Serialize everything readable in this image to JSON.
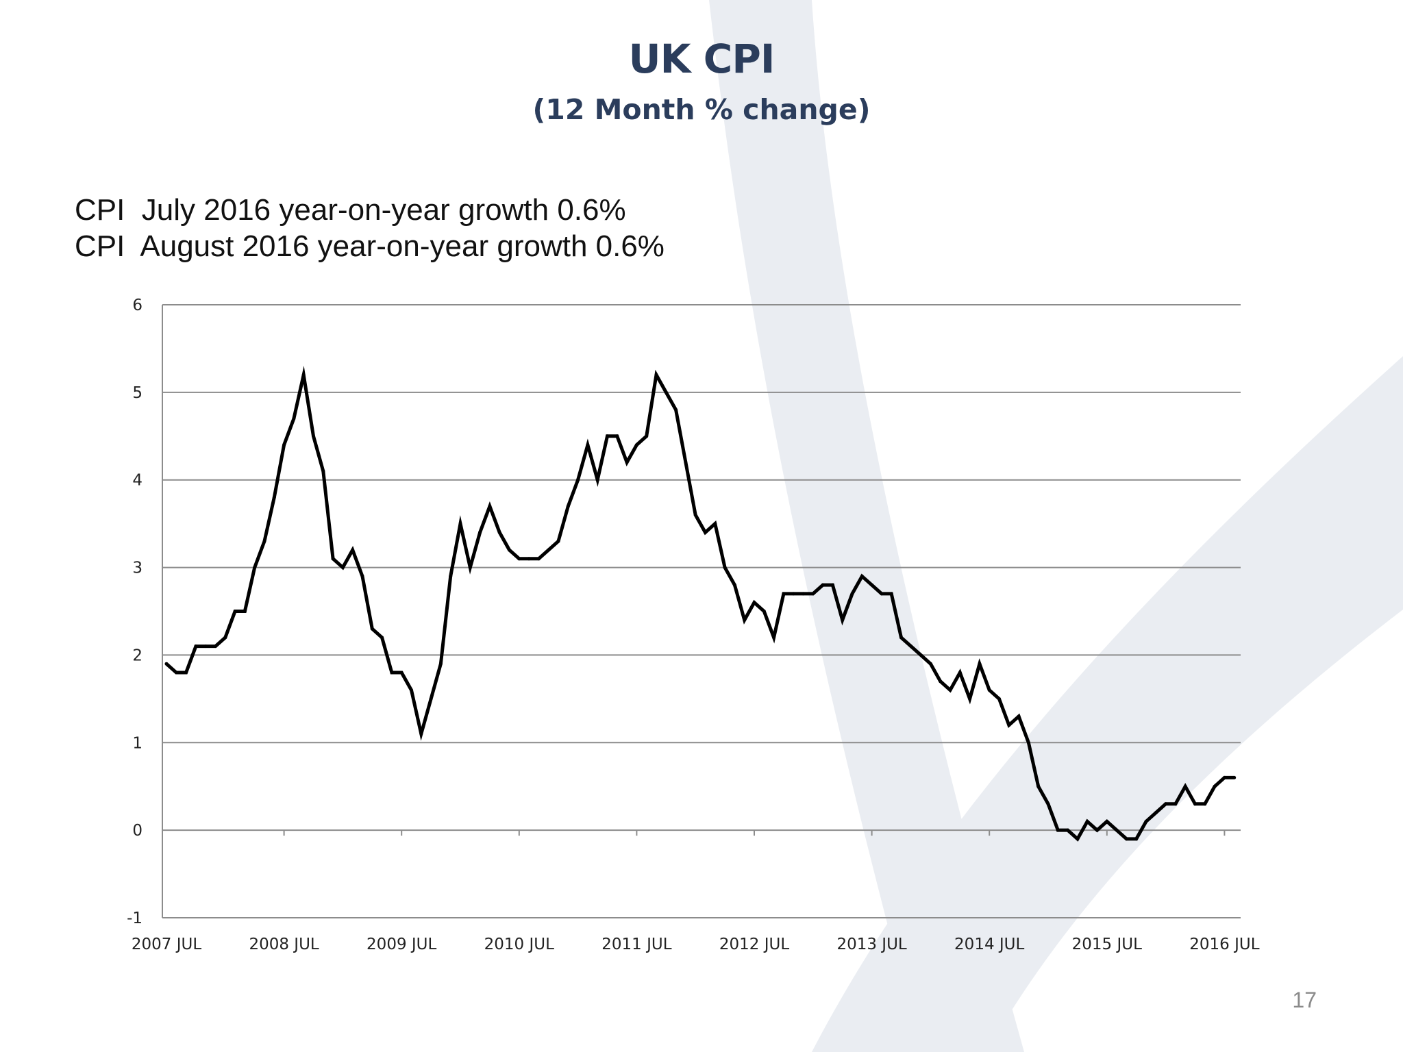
{
  "slide": {
    "title": "UK CPI",
    "subtitle": "(12 Month % change)",
    "notes": [
      "CPI  July 2016 year-on-year growth 0.6%",
      "CPI  August 2016 year-on-year growth 0.6%"
    ],
    "page_number": "17"
  },
  "colors": {
    "title": "#2b3d5c",
    "line": "#000000",
    "gridline": "#8c8c8c",
    "watermark": "#eaedf2"
  },
  "chart_data": {
    "type": "line",
    "title": "",
    "xlabel": "",
    "ylabel": "",
    "ylim": [
      -1,
      6
    ],
    "yticks": [
      -1,
      0,
      1,
      2,
      3,
      4,
      5,
      6
    ],
    "xtick_labels": [
      "2007 JUL",
      "2008 JUL",
      "2009 JUL",
      "2010 JUL",
      "2011 JUL",
      "2012 JUL",
      "2013 JUL",
      "2014 JUL",
      "2015 JUL",
      "2016 JUL"
    ],
    "grid": true,
    "legend": "none",
    "series": [
      {
        "start": "2007 JUL",
        "frequency": "monthly",
        "values": [
          1.9,
          1.8,
          1.8,
          2.1,
          2.1,
          2.1,
          2.2,
          2.5,
          2.5,
          3.0,
          3.3,
          3.8,
          4.4,
          4.7,
          5.2,
          4.5,
          4.1,
          3.1,
          3.0,
          3.2,
          2.9,
          2.3,
          2.2,
          1.8,
          1.8,
          1.6,
          1.1,
          1.5,
          1.9,
          2.9,
          3.5,
          3.0,
          3.4,
          3.7,
          3.4,
          3.2,
          3.1,
          3.1,
          3.1,
          3.2,
          3.3,
          3.7,
          4.0,
          4.4,
          4.0,
          4.5,
          4.5,
          4.2,
          4.4,
          4.5,
          5.2,
          5.0,
          4.8,
          4.2,
          3.6,
          3.4,
          3.5,
          3.0,
          2.8,
          2.4,
          2.6,
          2.5,
          2.2,
          2.7,
          2.7,
          2.7,
          2.7,
          2.8,
          2.8,
          2.4,
          2.7,
          2.9,
          2.8,
          2.7,
          2.7,
          2.2,
          2.1,
          2.0,
          1.9,
          1.7,
          1.6,
          1.8,
          1.5,
          1.9,
          1.6,
          1.5,
          1.2,
          1.3,
          1.0,
          0.5,
          0.3,
          0.0,
          0.0,
          -0.1,
          0.1,
          0.0,
          0.1,
          0.0,
          -0.1,
          -0.1,
          0.1,
          0.2,
          0.3,
          0.3,
          0.5,
          0.3,
          0.3,
          0.5,
          0.6,
          0.6
        ]
      }
    ]
  }
}
